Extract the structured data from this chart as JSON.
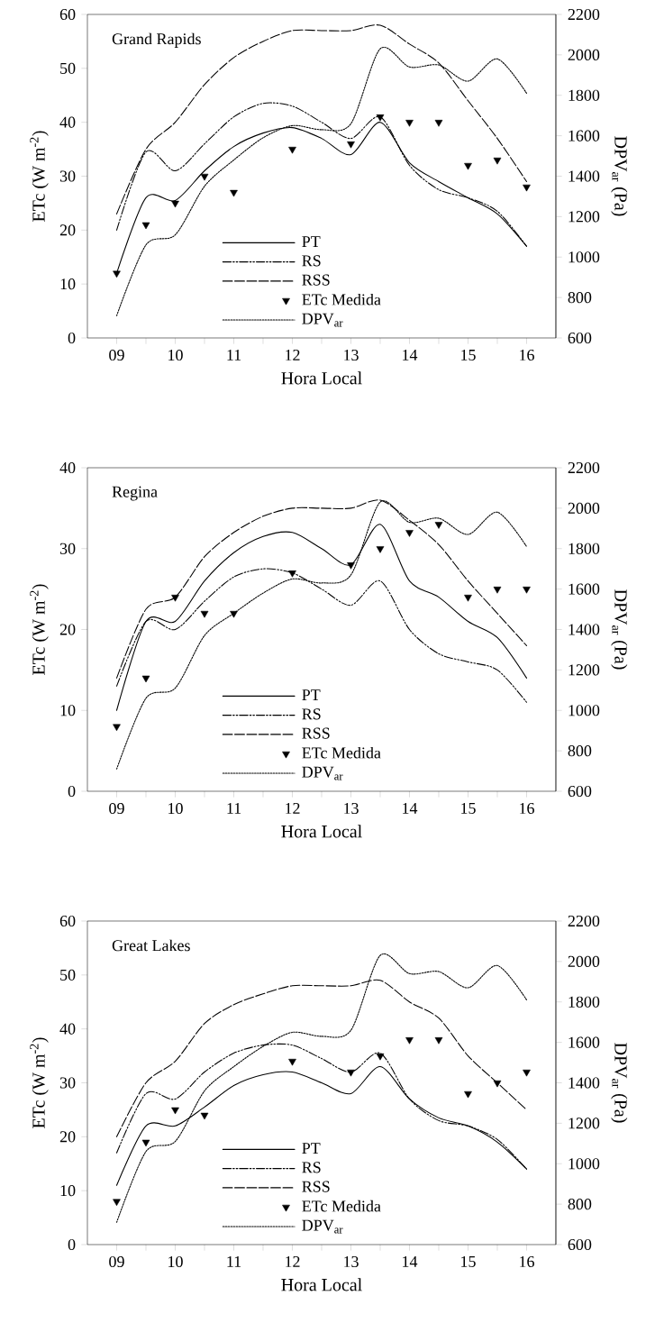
{
  "chart_data": [
    {
      "type": "line",
      "title": "Grand Rapids",
      "xlabel": "Hora Local",
      "ylabel": "ETc (W m$^{-2}$)",
      "y2label": "DPV$_{ar}$ (Pa)",
      "xlim": [
        8.5,
        16.5
      ],
      "ylim": [
        0,
        60
      ],
      "y2lim": [
        600,
        2200
      ],
      "xticks": [
        {
          "value": 9,
          "label": "09"
        },
        {
          "value": 9.5,
          "label": null
        },
        10,
        {
          "value": 10.5,
          "label": null
        },
        11,
        {
          "value": 11.5,
          "label": null
        },
        12,
        {
          "value": 12.5,
          "label": null
        },
        13,
        {
          "value": 13.5,
          "label": null
        },
        14,
        {
          "value": 14.5,
          "label": null
        },
        15,
        {
          "value": 15.5,
          "label": null
        },
        16
      ],
      "yticks": [
        0,
        10,
        20,
        30,
        40,
        50,
        60
      ],
      "y2ticks": [
        600,
        800,
        1000,
        1200,
        1400,
        1600,
        1800,
        2000,
        2200
      ],
      "legend": "bottom",
      "x": [
        9,
        9.5,
        10,
        10.5,
        11,
        11.5,
        12,
        12.5,
        13,
        13.5,
        14,
        14.5,
        15,
        15.5,
        16
      ],
      "series": [
        {
          "name": "PT",
          "line_style": "solid",
          "color": "#000000",
          "values": [
            12,
            26,
            25.5,
            31,
            35.5,
            38,
            39,
            37,
            34,
            40,
            32.5,
            29,
            26,
            23,
            17
          ]
        },
        {
          "name": "RS",
          "line_style": "dashdotdotted",
          "color": "#000000",
          "values": [
            20,
            34.5,
            31,
            36,
            41,
            43.5,
            43,
            40,
            37,
            41,
            32,
            27.5,
            26,
            23.5,
            17
          ]
        },
        {
          "name": "RSS",
          "line_style": "dashed",
          "color": "#000000",
          "values": [
            23,
            35,
            40,
            47,
            52,
            55,
            57,
            57,
            57,
            58,
            54.5,
            51,
            44,
            37,
            29
          ]
        },
        {
          "name": "ETc Medida",
          "type": "scatter",
          "marker": "triangle",
          "color": "#000000",
          "x": [
            9,
            9.5,
            10,
            10.5,
            11,
            12,
            13,
            13.5,
            14,
            14.5,
            15,
            15.5,
            16
          ],
          "values": [
            12,
            21,
            25,
            30,
            27,
            35,
            36,
            41,
            40,
            40,
            32,
            33,
            28
          ]
        },
        {
          "name": "DPV$_{ar}$",
          "axis": "y2",
          "line_style": "dotted",
          "color": "#000000",
          "values": [
            710,
            1060,
            1110,
            1350,
            1480,
            1590,
            1650,
            1630,
            1660,
            2030,
            1940,
            1950,
            1870,
            1980,
            1810
          ]
        }
      ]
    },
    {
      "type": "line",
      "title": "Regina",
      "xlabel": "Hora Local",
      "ylabel": "ETc (W m$^{-2}$)",
      "y2label": "DPV$_{ar}$ (Pa)",
      "xlim": [
        8.5,
        16.5
      ],
      "ylim": [
        0,
        40
      ],
      "y2lim": [
        600,
        2200
      ],
      "xticks": [
        {
          "value": 9,
          "label": "09"
        },
        {
          "value": 9.5,
          "label": null
        },
        10,
        {
          "value": 10.5,
          "label": null
        },
        11,
        {
          "value": 11.5,
          "label": null
        },
        12,
        {
          "value": 12.5,
          "label": null
        },
        13,
        {
          "value": 13.5,
          "label": null
        },
        14,
        {
          "value": 14.5,
          "label": null
        },
        15,
        {
          "value": 15.5,
          "label": null
        },
        16
      ],
      "yticks": [
        0,
        10,
        20,
        30,
        40
      ],
      "y2ticks": [
        600,
        800,
        1000,
        1200,
        1400,
        1600,
        1800,
        2000,
        2200
      ],
      "legend": "bottom",
      "x": [
        9,
        9.5,
        10,
        10.5,
        11,
        11.5,
        12,
        12.5,
        13,
        13.5,
        14,
        14.5,
        15,
        15.5,
        16
      ],
      "series": [
        {
          "name": "PT",
          "line_style": "solid",
          "color": "#000000",
          "values": [
            10,
            21,
            21,
            26,
            29.5,
            31.5,
            32,
            30,
            28,
            33,
            26,
            24,
            21,
            19,
            14
          ]
        },
        {
          "name": "RS",
          "line_style": "dashdotdotted",
          "color": "#000000",
          "values": [
            13,
            21,
            20,
            23.5,
            26.5,
            27.5,
            27,
            25,
            23,
            26,
            20,
            17,
            16,
            15,
            11
          ]
        },
        {
          "name": "RSS",
          "line_style": "dashed",
          "color": "#000000",
          "values": [
            14,
            22.5,
            24,
            29,
            32,
            34,
            35,
            35,
            35,
            36,
            33.5,
            30.5,
            26,
            22,
            18
          ]
        },
        {
          "name": "ETc Medida",
          "type": "scatter",
          "marker": "triangle",
          "color": "#000000",
          "x": [
            9,
            9.5,
            10,
            10.5,
            11,
            12,
            13,
            13.5,
            14,
            14.5,
            15,
            15.5,
            16
          ],
          "values": [
            8,
            14,
            24,
            22,
            22,
            27,
            28,
            30,
            32,
            33,
            24,
            25,
            25
          ]
        },
        {
          "name": "DPV$_{ar}$",
          "axis": "y2",
          "line_style": "dotted",
          "color": "#000000",
          "values": [
            710,
            1060,
            1110,
            1370,
            1480,
            1580,
            1650,
            1630,
            1670,
            2030,
            1930,
            1950,
            1870,
            1980,
            1810
          ]
        }
      ]
    },
    {
      "type": "line",
      "title": "Great Lakes",
      "xlabel": "Hora Local",
      "ylabel": "ETc (W m$^{-2}$)",
      "y2label": "DPV$_{ar}$ (Pa)",
      "xlim": [
        8.5,
        16.5
      ],
      "ylim": [
        0,
        60
      ],
      "y2lim": [
        600,
        2200
      ],
      "xticks": [
        {
          "value": 9,
          "label": "09"
        },
        {
          "value": 9.5,
          "label": null
        },
        10,
        {
          "value": 10.5,
          "label": null
        },
        11,
        {
          "value": 11.5,
          "label": null
        },
        12,
        {
          "value": 12.5,
          "label": null
        },
        13,
        {
          "value": 13.5,
          "label": null
        },
        14,
        {
          "value": 14.5,
          "label": null
        },
        15,
        {
          "value": 15.5,
          "label": null
        },
        16
      ],
      "yticks": [
        0,
        10,
        20,
        30,
        40,
        50,
        60
      ],
      "y2ticks": [
        600,
        800,
        1000,
        1200,
        1400,
        1600,
        1800,
        2000,
        2200
      ],
      "legend": "bottom",
      "x": [
        9,
        9.5,
        10,
        10.5,
        11,
        11.5,
        12,
        12.5,
        13,
        13.5,
        14,
        14.5,
        15,
        15.5,
        16
      ],
      "series": [
        {
          "name": "PT",
          "line_style": "solid",
          "color": "#000000",
          "values": [
            11,
            22,
            22,
            25.5,
            29.5,
            31.5,
            32,
            30,
            28,
            33,
            27,
            23.5,
            22,
            19,
            14
          ]
        },
        {
          "name": "RS",
          "line_style": "dashdotdotted",
          "color": "#000000",
          "values": [
            17,
            28,
            27,
            32,
            35.5,
            37,
            37,
            34.5,
            32,
            35.5,
            27,
            23,
            22,
            19.5,
            14
          ]
        },
        {
          "name": "RSS",
          "line_style": "dashed",
          "color": "#000000",
          "values": [
            20,
            30,
            34,
            41,
            44.5,
            46.5,
            48,
            48,
            48,
            49,
            45,
            42,
            35,
            30,
            25
          ]
        },
        {
          "name": "ETc Medida",
          "type": "scatter",
          "marker": "triangle",
          "color": "#000000",
          "x": [
            9,
            9.5,
            10,
            10.5,
            12,
            13,
            13.5,
            14,
            14.5,
            15,
            15.5,
            16
          ],
          "values": [
            8,
            19,
            25,
            24,
            34,
            32,
            35,
            38,
            38,
            28,
            30,
            32
          ]
        },
        {
          "name": "DPV$_{ar}$",
          "axis": "y2",
          "line_style": "dotted",
          "color": "#000000",
          "values": [
            710,
            1060,
            1110,
            1360,
            1480,
            1580,
            1650,
            1630,
            1660,
            2030,
            1940,
            1950,
            1870,
            1980,
            1810
          ]
        }
      ]
    }
  ]
}
